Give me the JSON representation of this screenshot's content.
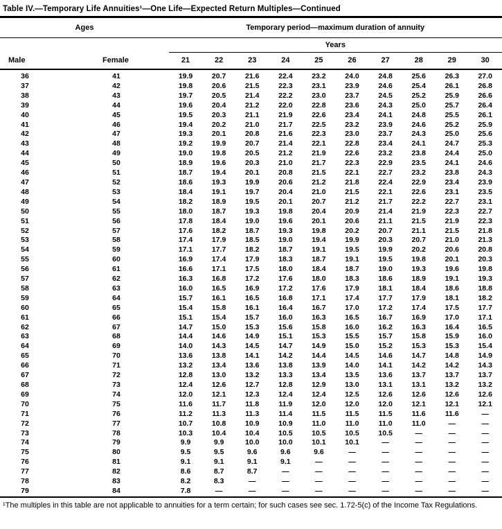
{
  "title": "Table IV.—Temporary Life Annuities¹—One Life—Expected Return Multiples—Continued",
  "header": {
    "ages_label": "Ages",
    "period_label": "Temporary period—maximum duration of annuity",
    "years_label": "Years",
    "male_label": "Male",
    "female_label": "Female",
    "year_columns": [
      "21",
      "22",
      "23",
      "24",
      "25",
      "26",
      "27",
      "28",
      "29",
      "30"
    ]
  },
  "rows": [
    {
      "male": "36",
      "female": "41",
      "values": [
        "19.9",
        "20.7",
        "21.6",
        "22.4",
        "23.2",
        "24.0",
        "24.8",
        "25.6",
        "26.3",
        "27.0"
      ]
    },
    {
      "male": "37",
      "female": "42",
      "values": [
        "19.8",
        "20.6",
        "21.5",
        "22.3",
        "23.1",
        "23.9",
        "24.6",
        "25.4",
        "26.1",
        "26.8"
      ]
    },
    {
      "male": "38",
      "female": "43",
      "values": [
        "19.7",
        "20.5",
        "21.4",
        "22.2",
        "23.0",
        "23.7",
        "24.5",
        "25.2",
        "25.9",
        "26.6"
      ]
    },
    {
      "male": "39",
      "female": "44",
      "values": [
        "19.6",
        "20.4",
        "21.2",
        "22.0",
        "22.8",
        "23.6",
        "24.3",
        "25.0",
        "25.7",
        "26.4"
      ]
    },
    {
      "male": "40",
      "female": "45",
      "values": [
        "19.5",
        "20.3",
        "21.1",
        "21.9",
        "22.6",
        "23.4",
        "24.1",
        "24.8",
        "25.5",
        "26.1"
      ]
    },
    {
      "male": "41",
      "female": "46",
      "values": [
        "19.4",
        "20.2",
        "21.0",
        "21.7",
        "22.5",
        "23.2",
        "23.9",
        "24.6",
        "25.2",
        "25.9"
      ]
    },
    {
      "male": "42",
      "female": "47",
      "values": [
        "19.3",
        "20.1",
        "20.8",
        "21.6",
        "22.3",
        "23.0",
        "23.7",
        "24.3",
        "25.0",
        "25.6"
      ]
    },
    {
      "male": "43",
      "female": "48",
      "values": [
        "19.2",
        "19.9",
        "20.7",
        "21.4",
        "22.1",
        "22.8",
        "23.4",
        "24.1",
        "24.7",
        "25.3"
      ]
    },
    {
      "male": "44",
      "female": "49",
      "values": [
        "19.0",
        "19.8",
        "20.5",
        "21.2",
        "21.9",
        "22.6",
        "23.2",
        "23.8",
        "24.4",
        "25.0"
      ]
    },
    {
      "male": "45",
      "female": "50",
      "values": [
        "18.9",
        "19.6",
        "20.3",
        "21.0",
        "21.7",
        "22.3",
        "22.9",
        "23.5",
        "24.1",
        "24.6"
      ]
    },
    {
      "male": "46",
      "female": "51",
      "values": [
        "18.7",
        "19.4",
        "20.1",
        "20.8",
        "21.5",
        "22.1",
        "22.7",
        "23.2",
        "23.8",
        "24.3"
      ]
    },
    {
      "male": "47",
      "female": "52",
      "values": [
        "18.6",
        "19.3",
        "19.9",
        "20.6",
        "21.2",
        "21.8",
        "22.4",
        "22.9",
        "23.4",
        "23.9"
      ]
    },
    {
      "male": "48",
      "female": "53",
      "values": [
        "18.4",
        "19.1",
        "19.7",
        "20.4",
        "21.0",
        "21.5",
        "22.1",
        "22.6",
        "23.1",
        "23.5"
      ]
    },
    {
      "male": "49",
      "female": "54",
      "values": [
        "18.2",
        "18.9",
        "19.5",
        "20.1",
        "20.7",
        "21.2",
        "21.7",
        "22.2",
        "22.7",
        "23.1"
      ]
    },
    {
      "male": "50",
      "female": "55",
      "values": [
        "18.0",
        "18.7",
        "19.3",
        "19.8",
        "20.4",
        "20.9",
        "21.4",
        "21.9",
        "22.3",
        "22.7"
      ]
    },
    {
      "male": "51",
      "female": "56",
      "values": [
        "17.8",
        "18.4",
        "19.0",
        "19.6",
        "20.1",
        "20.6",
        "21.1",
        "21.5",
        "21.9",
        "22.3"
      ]
    },
    {
      "male": "52",
      "female": "57",
      "values": [
        "17.6",
        "18.2",
        "18.7",
        "19.3",
        "19.8",
        "20.2",
        "20.7",
        "21.1",
        "21.5",
        "21.8"
      ]
    },
    {
      "male": "53",
      "female": "58",
      "values": [
        "17.4",
        "17.9",
        "18.5",
        "19.0",
        "19.4",
        "19.9",
        "20.3",
        "20.7",
        "21.0",
        "21.3"
      ]
    },
    {
      "male": "54",
      "female": "59",
      "values": [
        "17.1",
        "17.7",
        "18.2",
        "18.7",
        "19.1",
        "19.5",
        "19.9",
        "20.2",
        "20.6",
        "20.8"
      ]
    },
    {
      "male": "55",
      "female": "60",
      "values": [
        "16.9",
        "17.4",
        "17.9",
        "18.3",
        "18.7",
        "19.1",
        "19.5",
        "19.8",
        "20.1",
        "20.3"
      ]
    },
    {
      "male": "56",
      "female": "61",
      "values": [
        "16.6",
        "17.1",
        "17.5",
        "18.0",
        "18.4",
        "18.7",
        "19.0",
        "19.3",
        "19.6",
        "19.8"
      ]
    },
    {
      "male": "57",
      "female": "62",
      "values": [
        "16.3",
        "16.8",
        "17.2",
        "17.6",
        "18.0",
        "18.3",
        "18.6",
        "18.9",
        "19.1",
        "19.3"
      ]
    },
    {
      "male": "58",
      "female": "63",
      "values": [
        "16.0",
        "16.5",
        "16.9",
        "17.2",
        "17.6",
        "17.9",
        "18.1",
        "18.4",
        "18.6",
        "18.8"
      ]
    },
    {
      "male": "59",
      "female": "64",
      "values": [
        "15.7",
        "16.1",
        "16.5",
        "16.8",
        "17.1",
        "17.4",
        "17.7",
        "17.9",
        "18.1",
        "18.2"
      ]
    },
    {
      "male": "60",
      "female": "65",
      "values": [
        "15.4",
        "15.8",
        "16.1",
        "16.4",
        "16.7",
        "17.0",
        "17.2",
        "17.4",
        "17.5",
        "17.7"
      ]
    },
    {
      "male": "61",
      "female": "66",
      "values": [
        "15.1",
        "15.4",
        "15.7",
        "16.0",
        "16.3",
        "16.5",
        "16.7",
        "16.9",
        "17.0",
        "17.1"
      ]
    },
    {
      "male": "62",
      "female": "67",
      "values": [
        "14.7",
        "15.0",
        "15.3",
        "15.6",
        "15.8",
        "16.0",
        "16.2",
        "16.3",
        "16.4",
        "16.5"
      ]
    },
    {
      "male": "63",
      "female": "68",
      "values": [
        "14.4",
        "14.6",
        "14.9",
        "15.1",
        "15.3",
        "15.5",
        "15.7",
        "15.8",
        "15.9",
        "16.0"
      ]
    },
    {
      "male": "64",
      "female": "69",
      "values": [
        "14.0",
        "14.3",
        "14.5",
        "14.7",
        "14.9",
        "15.0",
        "15.2",
        "15.3",
        "15.3",
        "15.4"
      ]
    },
    {
      "male": "65",
      "female": "70",
      "values": [
        "13.6",
        "13.8",
        "14.1",
        "14.2",
        "14.4",
        "14.5",
        "14.6",
        "14.7",
        "14.8",
        "14.9"
      ]
    },
    {
      "male": "66",
      "female": "71",
      "values": [
        "13.2",
        "13.4",
        "13.6",
        "13.8",
        "13.9",
        "14.0",
        "14.1",
        "14.2",
        "14.2",
        "14.3"
      ]
    },
    {
      "male": "67",
      "female": "72",
      "values": [
        "12.8",
        "13.0",
        "13.2",
        "13.3",
        "13.4",
        "13.5",
        "13.6",
        "13.7",
        "13.7",
        "13.7"
      ]
    },
    {
      "male": "68",
      "female": "73",
      "values": [
        "12.4",
        "12.6",
        "12.7",
        "12.8",
        "12.9",
        "13.0",
        "13.1",
        "13.1",
        "13.2",
        "13.2"
      ]
    },
    {
      "male": "69",
      "female": "74",
      "values": [
        "12.0",
        "12.1",
        "12.3",
        "12.4",
        "12.4",
        "12.5",
        "12.6",
        "12.6",
        "12.6",
        "12.6"
      ]
    },
    {
      "male": "70",
      "female": "75",
      "values": [
        "11.6",
        "11.7",
        "11.8",
        "11.9",
        "12.0",
        "12.0",
        "12.0",
        "12.1",
        "12.1",
        "12.1"
      ]
    },
    {
      "male": "71",
      "female": "76",
      "values": [
        "11.2",
        "11.3",
        "11.3",
        "11.4",
        "11.5",
        "11.5",
        "11.5",
        "11.6",
        "11.6",
        "—"
      ]
    },
    {
      "male": "72",
      "female": "77",
      "values": [
        "10.7",
        "10.8",
        "10.9",
        "10.9",
        "11.0",
        "11.0",
        "11.0",
        "11.0",
        "—",
        "—"
      ]
    },
    {
      "male": "73",
      "female": "78",
      "values": [
        "10.3",
        "10.4",
        "10.4",
        "10.5",
        "10.5",
        "10.5",
        "10.5",
        "—",
        "—",
        "—"
      ]
    },
    {
      "male": "74",
      "female": "79",
      "values": [
        "9.9",
        "9.9",
        "10.0",
        "10.0",
        "10.1",
        "10.1",
        "—",
        "—",
        "—",
        "—"
      ]
    },
    {
      "male": "75",
      "female": "80",
      "values": [
        "9.5",
        "9.5",
        "9.6",
        "9.6",
        "9.6",
        "—",
        "—",
        "—",
        "—",
        "—"
      ]
    },
    {
      "male": "76",
      "female": "81",
      "values": [
        "9.1",
        "9.1",
        "9.1",
        "9.1",
        "—",
        "—",
        "—",
        "—",
        "—",
        "—"
      ]
    },
    {
      "male": "77",
      "female": "82",
      "values": [
        "8.6",
        "8.7",
        "8.7",
        "—",
        "—",
        "—",
        "—",
        "—",
        "—",
        "—"
      ]
    },
    {
      "male": "78",
      "female": "83",
      "values": [
        "8.2",
        "8.3",
        "—",
        "—",
        "—",
        "—",
        "—",
        "—",
        "—",
        "—"
      ]
    },
    {
      "male": "79",
      "female": "84",
      "values": [
        "7.8",
        "—",
        "—",
        "—",
        "—",
        "—",
        "—",
        "—",
        "—",
        "—"
      ]
    }
  ],
  "footnote": "¹The multiples in this table are not applicable to annuities for a term certain; for such cases see sec. 1.72-5(c) of the Income Tax Regulations."
}
